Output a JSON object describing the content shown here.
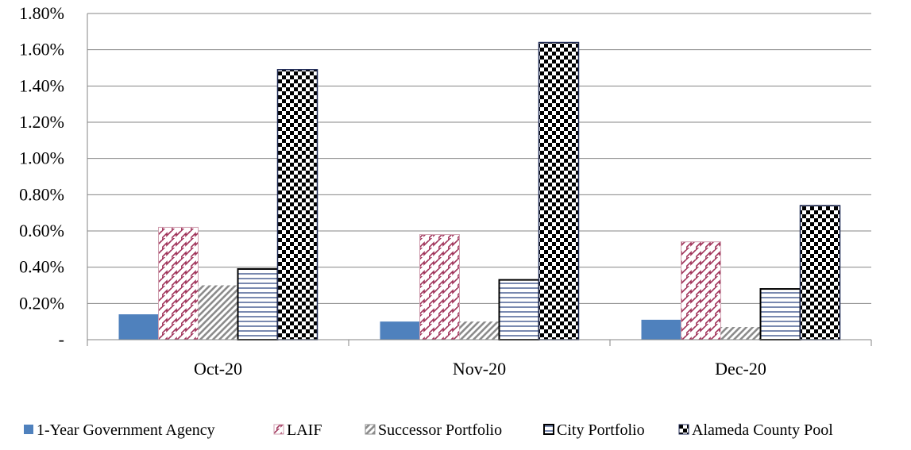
{
  "chart_data": {
    "type": "bar",
    "categories": [
      "Oct-20",
      "Nov-20",
      "Dec-20"
    ],
    "series": [
      {
        "name": "1-Year Government Agency",
        "values": [
          0.14,
          0.1,
          0.11
        ],
        "color": "#4f81bd",
        "pattern": "solid"
      },
      {
        "name": "LAIF",
        "values": [
          0.62,
          0.58,
          0.54
        ],
        "color": "#a0335a",
        "pattern": "zigzag"
      },
      {
        "name": "Successor Portfolio",
        "values": [
          0.3,
          0.1,
          0.07
        ],
        "color": "#8c8c8c",
        "pattern": "diagonal"
      },
      {
        "name": "City Portfolio",
        "values": [
          0.39,
          0.33,
          0.28
        ],
        "color": "#1f3a7a",
        "pattern": "horizontal"
      },
      {
        "name": "Alameda County Pool",
        "values": [
          1.49,
          1.64,
          0.74
        ],
        "color": "#000000",
        "pattern": "checker"
      }
    ],
    "ylim": [
      0,
      1.8
    ],
    "yticks": [
      0,
      0.2,
      0.4,
      0.6,
      0.8,
      1.0,
      1.2,
      1.4,
      1.6,
      1.8
    ],
    "ytick_labels": [
      "-",
      "0.20%",
      "0.40%",
      "0.60%",
      "0.80%",
      "1.00%",
      "1.20%",
      "1.40%",
      "1.60%",
      "1.80%"
    ],
    "title": "",
    "xlabel": "",
    "ylabel": "",
    "grid": true,
    "legend_position": "bottom"
  }
}
